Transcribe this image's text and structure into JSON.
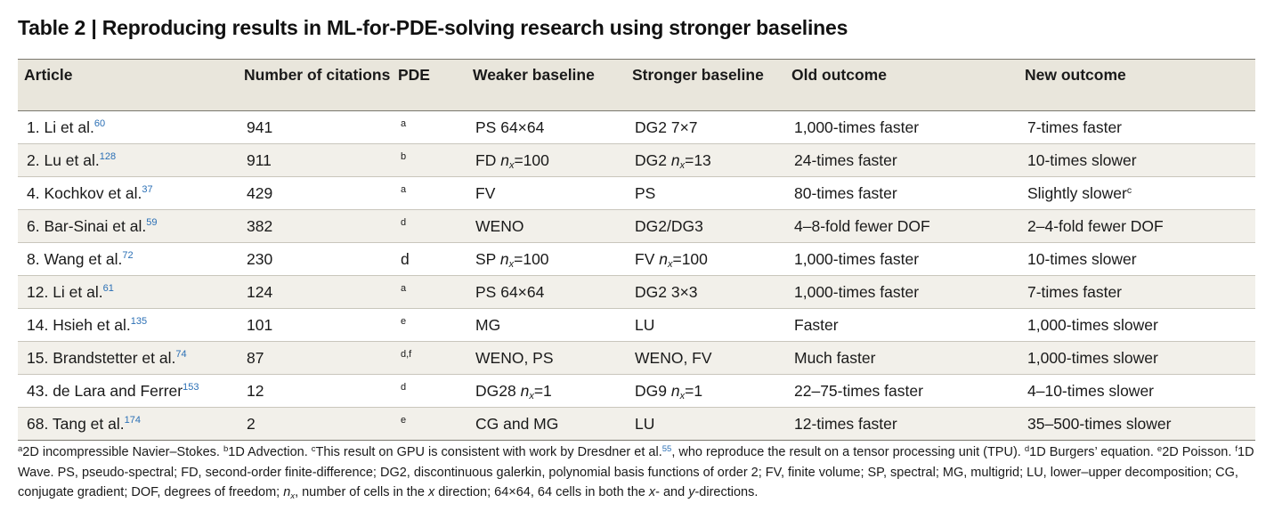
{
  "title": "Table 2 | Reproducing results in ML-for-PDE-solving research using stronger baselines",
  "columns": [
    "Article",
    "Number of citations",
    "PDE",
    "Weaker baseline",
    "Stronger baseline",
    "Old outcome",
    "New outcome"
  ],
  "rows": [
    {
      "article": "1. Li et al.",
      "ref": "60",
      "citations": "941",
      "pde": "a",
      "weaker_pre": "PS 64×64",
      "weaker_var": "",
      "weaker_post": "",
      "stronger_pre": "DG2 7×7",
      "stronger_var": "",
      "stronger_post": "",
      "old": "1,000-times faster",
      "new": "7-times faster",
      "new_note": ""
    },
    {
      "article": "2. Lu et al.",
      "ref": "128",
      "citations": "911",
      "pde": "b",
      "weaker_pre": "FD ",
      "weaker_var": "n",
      "weaker_post": "=100",
      "stronger_pre": "DG2 ",
      "stronger_var": "n",
      "stronger_post": "=13",
      "old": "24-times faster",
      "new": "10-times slower",
      "new_note": ""
    },
    {
      "article": "4. Kochkov et al.",
      "ref": "37",
      "citations": "429",
      "pde": "a",
      "weaker_pre": "FV",
      "weaker_var": "",
      "weaker_post": "",
      "stronger_pre": "PS",
      "stronger_var": "",
      "stronger_post": "",
      "old": "80-times faster",
      "new": "Slightly slower",
      "new_note": "c"
    },
    {
      "article": "6. Bar-Sinai et al.",
      "ref": "59",
      "citations": "382",
      "pde": "d",
      "weaker_pre": "WENO",
      "weaker_var": "",
      "weaker_post": "",
      "stronger_pre": "DG2/DG3",
      "stronger_var": "",
      "stronger_post": "",
      "old": "4–8-fold fewer DOF",
      "new": "2–4-fold fewer DOF",
      "new_note": ""
    },
    {
      "article": "8. Wang et al.",
      "ref": "72",
      "citations": "230",
      "pde": "d",
      "pde_plain": true,
      "weaker_pre": "SP ",
      "weaker_var": "n",
      "weaker_post": "=100",
      "stronger_pre": "FV ",
      "stronger_var": "n",
      "stronger_post": "=100",
      "old": "1,000-times faster",
      "new": "10-times slower",
      "new_note": ""
    },
    {
      "article": "12. Li et al.",
      "ref": "61",
      "citations": "124",
      "pde": "a",
      "weaker_pre": "PS 64×64",
      "weaker_var": "",
      "weaker_post": "",
      "stronger_pre": "DG2 3×3",
      "stronger_var": "",
      "stronger_post": "",
      "old": "1,000-times faster",
      "new": "7-times faster",
      "new_note": ""
    },
    {
      "article": "14. Hsieh et al.",
      "ref": "135",
      "citations": "101",
      "pde": "e",
      "weaker_pre": "MG",
      "weaker_var": "",
      "weaker_post": "",
      "stronger_pre": "LU",
      "stronger_var": "",
      "stronger_post": "",
      "old": "Faster",
      "new": "1,000-times slower",
      "new_note": ""
    },
    {
      "article": "15. Brandstetter et al.",
      "ref": "74",
      "citations": "87",
      "pde": "d,f",
      "weaker_pre": "WENO, PS",
      "weaker_var": "",
      "weaker_post": "",
      "stronger_pre": "WENO, FV",
      "stronger_var": "",
      "stronger_post": "",
      "old": "Much faster",
      "new": "1,000-times slower",
      "new_note": ""
    },
    {
      "article": "43. de Lara and Ferrer",
      "ref": "153",
      "citations": "12",
      "pde": "d",
      "weaker_pre": "DG28 ",
      "weaker_var": "n",
      "weaker_post": "=1",
      "stronger_pre": "DG9 ",
      "stronger_var": "n",
      "stronger_post": "=1",
      "old": "22–75-times faster",
      "new": "4–10-times slower",
      "new_note": ""
    },
    {
      "article": "68. Tang et al.",
      "ref": "174",
      "citations": "2",
      "pde": "e",
      "weaker_pre": "CG and MG",
      "weaker_var": "",
      "weaker_post": "",
      "stronger_pre": "LU",
      "stronger_var": "",
      "stronger_post": "",
      "old": "12-times faster",
      "new": "35–500-times slower",
      "new_note": ""
    }
  ],
  "footnote": {
    "a_mark": "a",
    "a_text": "2D incompressible Navier–Stokes. ",
    "b_mark": "b",
    "b_text": "1D Advection. ",
    "c_mark": "c",
    "c_text1": "This result on GPU is consistent with work by Dresdner et al.",
    "c_ref": "55",
    "c_text2": ", who reproduce the result on a tensor processing unit (TPU). ",
    "d_mark": "d",
    "d_text": "1D Burgers’ equation. ",
    "e_mark": "e",
    "e_text": "2D Poisson. ",
    "f_mark": "f",
    "f_text": "1D Wave. PS, pseudo-spectral; FD, second-order finite-difference; DG2, discontinuous galerkin, polynomial basis functions of order 2; FV, finite volume; SP, spectral; MG, multigrid; LU, lower–upper decomposition; CG, conjugate gradient; DOF, degrees of freedom; ",
    "nx_var": "n",
    "nx_sub": "x",
    "nx_text": ", number of cells in the ",
    "x_var": "x",
    "dir_text": " direction; 64×64, 64 cells in both the ",
    "xy_x": "x",
    "xy_mid": "- and ",
    "xy_y": "y",
    "xy_end": "-directions."
  },
  "sub_x": "x"
}
